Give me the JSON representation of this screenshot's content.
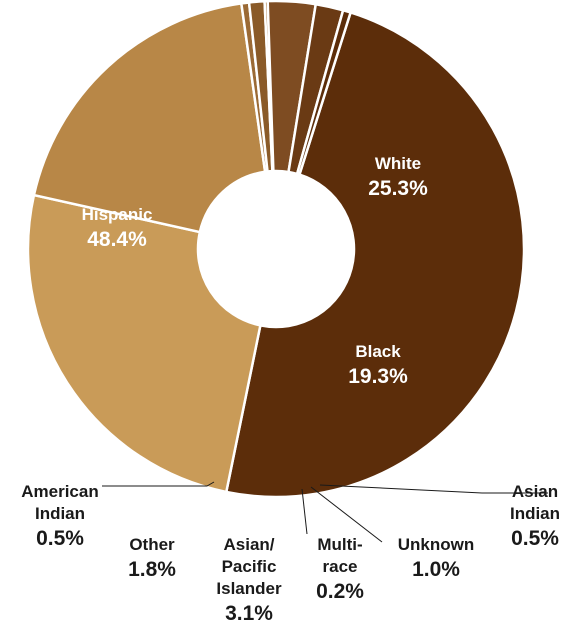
{
  "chart_data": {
    "type": "pie",
    "donut": true,
    "title": "",
    "slices": [
      {
        "label": "Hispanic",
        "lines": [
          "Hispanic"
        ],
        "value": 48.4,
        "pct_text": "48.4%",
        "color": "#5c2d0a",
        "text_color": "#ffffff"
      },
      {
        "label": "White",
        "lines": [
          "White"
        ],
        "value": 25.3,
        "pct_text": "25.3%",
        "color": "#c99b58",
        "text_color": "#ffffff"
      },
      {
        "label": "Black",
        "lines": [
          "Black"
        ],
        "value": 19.3,
        "pct_text": "19.3%",
        "color": "#b88747",
        "text_color": "#ffffff"
      },
      {
        "label": "Asian Indian",
        "lines": [
          "Asian",
          "Indian"
        ],
        "value": 0.5,
        "pct_text": "0.5%",
        "color": "#9b6a35",
        "text_color": "#1a1a1a"
      },
      {
        "label": "Unknown",
        "lines": [
          "Unknown"
        ],
        "value": 1.0,
        "pct_text": "1.0%",
        "color": "#8a5a28",
        "text_color": "#1a1a1a"
      },
      {
        "label": "Multi-race",
        "lines": [
          "Multi-",
          "race"
        ],
        "value": 0.2,
        "pct_text": "0.2%",
        "color": "#a06d35",
        "text_color": "#1a1a1a"
      },
      {
        "label": "Asian/Pacific Islander",
        "lines": [
          "Asian/",
          "Pacific",
          "Islander"
        ],
        "value": 3.1,
        "pct_text": "3.1%",
        "color": "#7e4c22",
        "text_color": "#1a1a1a"
      },
      {
        "label": "Other",
        "lines": [
          "Other"
        ],
        "value": 1.8,
        "pct_text": "1.8%",
        "color": "#6a3a14",
        "text_color": "#1a1a1a"
      },
      {
        "label": "American Indian",
        "lines": [
          "American",
          "Indian"
        ],
        "value": 0.5,
        "pct_text": "0.5%",
        "color": "#5c2d0a",
        "text_color": "#1a1a1a"
      }
    ]
  }
}
